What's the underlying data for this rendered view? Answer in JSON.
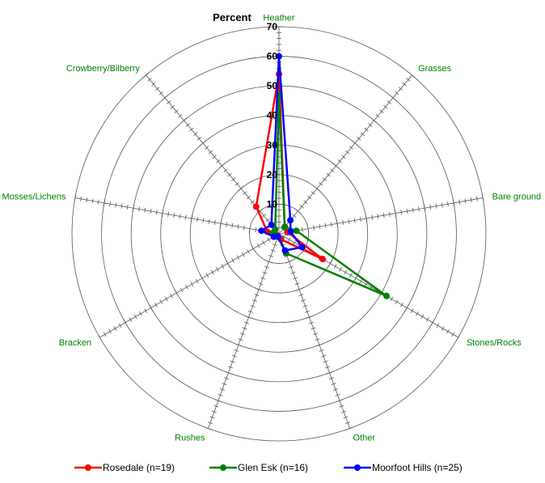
{
  "chart_data": {
    "type": "radar",
    "axis_title": "Percent",
    "categories": [
      "Heather",
      "Grasses",
      "Bare ground",
      "Stones/Rocks",
      "Other",
      "Rushes",
      "Bracken",
      "Mosses/Lichens",
      "Crowberry/Bilberry"
    ],
    "rlim": [
      0,
      70
    ],
    "r_ticks": [
      "10",
      "20",
      "30",
      "40",
      "50",
      "60",
      "70"
    ],
    "grid": true,
    "legend_position": "bottom",
    "series": [
      {
        "name": "Rosedale (n=19)",
        "color": "#ff0000",
        "values": [
          54,
          3,
          3,
          17,
          2,
          1,
          1,
          4,
          12
        ]
      },
      {
        "name": "Glen Esk (n=16)",
        "color": "#008000",
        "values": [
          47,
          3,
          6,
          42,
          7,
          1,
          1,
          2,
          2
        ]
      },
      {
        "name": "Moorfoot Hills (n=25)",
        "color": "#0000ff",
        "values": [
          60,
          6,
          4,
          9,
          6,
          1,
          2,
          6,
          4
        ]
      }
    ]
  }
}
